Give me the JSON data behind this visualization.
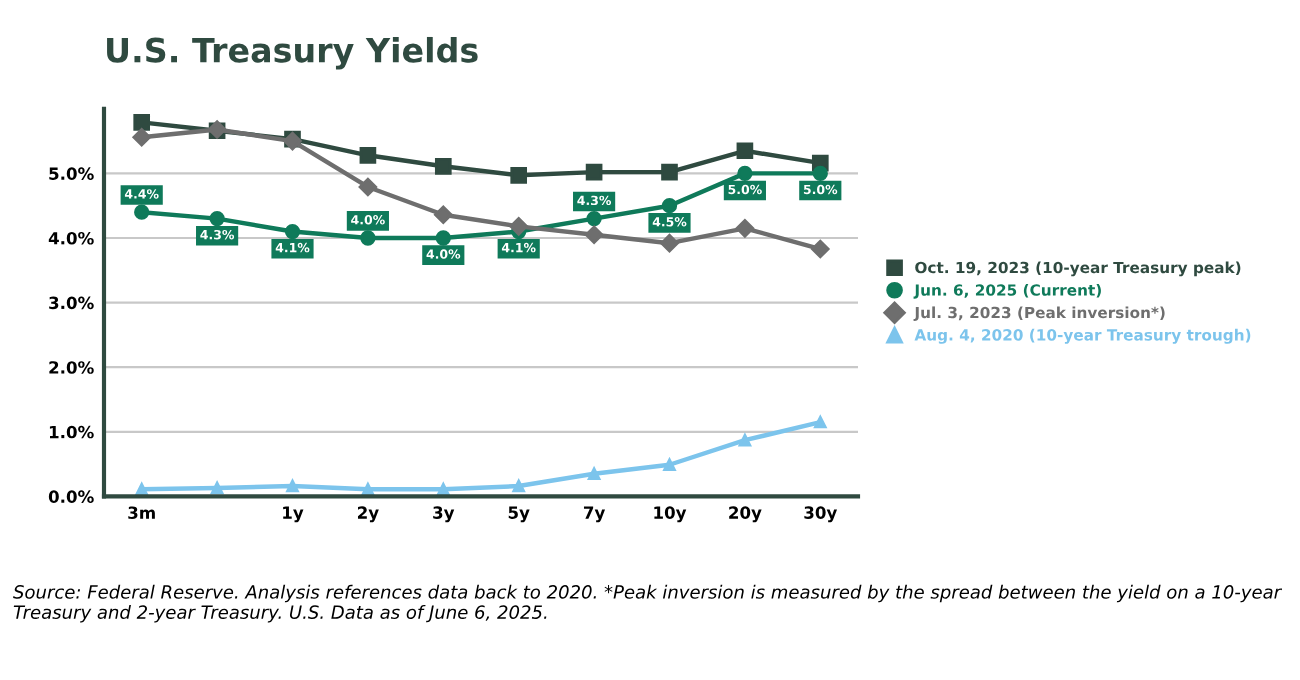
{
  "chart_data": {
    "type": "line",
    "title": "U.S. Treasury Yields",
    "categories": [
      "3m",
      null,
      "1y",
      "2y",
      "3y",
      "5y",
      "7y",
      "10y",
      "20y",
      "30y"
    ],
    "series": [
      {
        "name": "Oct. 19, 2023 (10-year Treasury peak)",
        "color": "#2f4a40",
        "marker": "square",
        "values": [
          5.79,
          5.66,
          5.53,
          5.28,
          5.11,
          4.97,
          5.02,
          5.02,
          5.35,
          5.16
        ]
      },
      {
        "name": "Jun. 6, 2025 (Current)",
        "color": "#0f7a5a",
        "marker": "circle",
        "values": [
          4.4,
          4.3,
          4.1,
          4.0,
          4.0,
          4.1,
          4.3,
          4.5,
          5.0,
          5.0
        ],
        "value_labels": [
          "4.4%",
          "4.3%",
          "4.1%",
          "4.0%",
          "4.0%",
          "4.1%",
          "4.3%",
          "4.5%",
          "5.0%",
          "5.0%"
        ]
      },
      {
        "name": "Jul. 3, 2023 (Peak inversion*)",
        "color": "#6e6e6e",
        "marker": "diamond",
        "values": [
          5.56,
          5.68,
          5.5,
          4.79,
          4.36,
          4.18,
          4.05,
          3.92,
          4.15,
          3.83
        ]
      },
      {
        "name": "Aug. 4, 2020 (10-year Treasury trough)",
        "color": "#7cc4ec",
        "marker": "triangle",
        "values": [
          0.11,
          0.13,
          0.16,
          0.11,
          0.11,
          0.16,
          0.35,
          0.49,
          0.87,
          1.15
        ]
      }
    ],
    "ylim": [
      0,
      6
    ],
    "yticks": [
      {
        "value": 0,
        "label": "0.0%"
      },
      {
        "value": 1,
        "label": "1.0%"
      },
      {
        "value": 2,
        "label": "2.0%"
      },
      {
        "value": 3,
        "label": "3.0%"
      },
      {
        "value": 4,
        "label": "4.0%"
      },
      {
        "value": 5,
        "label": "5.0%"
      }
    ],
    "grid": "y",
    "legend": "right",
    "annotations": [
      "Source: Federal Reserve. Analysis references data back to 2020. *Peak inversion is measured by the spread between the yield on a 10-year Treasury and 2-year Treasury. U.S. Data as of June 6, 2025."
    ]
  }
}
